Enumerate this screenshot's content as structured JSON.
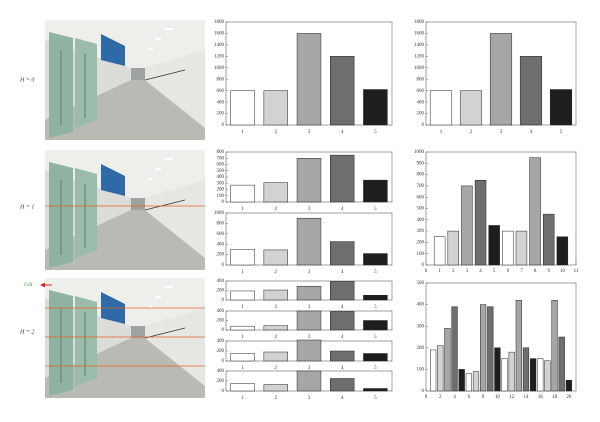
{
  "row_labels": [
    "H = 0",
    "H = 1",
    "H = 2"
  ],
  "cell_label": "Cell",
  "chart_data": [
    {
      "type": "bar",
      "categories": [
        "1",
        "2",
        "3",
        "4",
        "5"
      ],
      "values": [
        600,
        600,
        1600,
        1200,
        620
      ],
      "colors": [
        "#ffffff",
        "#d2d2d2",
        "#a6a6a6",
        "#6e6e6e",
        "#1e1e1e"
      ],
      "ylim": [
        0,
        1800
      ],
      "yticks": [
        0,
        200,
        400,
        600,
        800,
        1000,
        1200,
        1400,
        1600,
        1800
      ]
    },
    {
      "type": "bar",
      "categories": [
        "1",
        "2",
        "3",
        "4",
        "5"
      ],
      "values": [
        600,
        600,
        1600,
        1200,
        620
      ],
      "colors": [
        "#ffffff",
        "#d2d2d2",
        "#a6a6a6",
        "#6e6e6e",
        "#1e1e1e"
      ],
      "ylim": [
        0,
        1800
      ],
      "yticks": [
        0,
        200,
        400,
        600,
        800,
        1000,
        1200,
        1400,
        1600,
        1800
      ]
    },
    {
      "type": "bar",
      "categories": [
        "1",
        "2",
        "3",
        "4",
        "5"
      ],
      "values": [
        270,
        310,
        700,
        750,
        350
      ],
      "colors": [
        "#ffffff",
        "#d2d2d2",
        "#a6a6a6",
        "#6e6e6e",
        "#1e1e1e"
      ],
      "ylim": [
        0,
        800
      ],
      "yticks": [
        0,
        100,
        200,
        300,
        400,
        500,
        600,
        700,
        800
      ]
    },
    {
      "type": "bar",
      "categories": [
        "1",
        "2",
        "3",
        "4",
        "5"
      ],
      "values": [
        300,
        290,
        900,
        450,
        220
      ],
      "colors": [
        "#ffffff",
        "#d2d2d2",
        "#a6a6a6",
        "#6e6e6e",
        "#1e1e1e"
      ],
      "ylim": [
        0,
        1000
      ],
      "yticks": [
        0,
        200,
        400,
        600,
        800,
        1000
      ]
    },
    {
      "type": "bar",
      "x": [
        1,
        2,
        3,
        4,
        5,
        6,
        7,
        8,
        9,
        10
      ],
      "values": [
        250,
        300,
        700,
        750,
        350,
        300,
        300,
        950,
        450,
        250
      ],
      "colors": [
        "#ffffff",
        "#d2d2d2",
        "#a6a6a6",
        "#6e6e6e",
        "#1e1e1e",
        "#ffffff",
        "#d2d2d2",
        "#a6a6a6",
        "#6e6e6e",
        "#1e1e1e"
      ],
      "xlim": [
        0,
        11
      ],
      "xticks": [
        0,
        1,
        2,
        3,
        4,
        5,
        6,
        7,
        8,
        9,
        10,
        11
      ],
      "ylim": [
        0,
        1000
      ],
      "yticks": [
        0,
        100,
        200,
        300,
        400,
        500,
        600,
        700,
        800,
        900,
        1000
      ]
    },
    {
      "type": "bar",
      "categories": [
        "1",
        "2",
        "3",
        "4",
        "5"
      ],
      "values": [
        190,
        210,
        290,
        390,
        100
      ],
      "colors": [
        "#ffffff",
        "#d2d2d2",
        "#a6a6a6",
        "#6e6e6e",
        "#1e1e1e"
      ],
      "ylim": [
        0,
        400
      ],
      "yticks": [
        0,
        200,
        400
      ]
    },
    {
      "type": "bar",
      "categories": [
        "1",
        "2",
        "3",
        "4",
        "5"
      ],
      "values": [
        80,
        90,
        400,
        390,
        200
      ],
      "colors": [
        "#ffffff",
        "#d2d2d2",
        "#a6a6a6",
        "#6e6e6e",
        "#1e1e1e"
      ],
      "ylim": [
        0,
        400
      ],
      "yticks": [
        0,
        200,
        400
      ]
    },
    {
      "type": "bar",
      "categories": [
        "1",
        "2",
        "3",
        "4",
        "5"
      ],
      "values": [
        150,
        180,
        420,
        200,
        150
      ],
      "colors": [
        "#ffffff",
        "#d2d2d2",
        "#a6a6a6",
        "#6e6e6e",
        "#1e1e1e"
      ],
      "ylim": [
        0,
        400
      ],
      "yticks": [
        0,
        200,
        400
      ]
    },
    {
      "type": "bar",
      "categories": [
        "1",
        "2",
        "3",
        "4",
        "5"
      ],
      "values": [
        150,
        130,
        400,
        250,
        50
      ],
      "colors": [
        "#ffffff",
        "#d2d2d2",
        "#a6a6a6",
        "#6e6e6e",
        "#1e1e1e"
      ],
      "ylim": [
        0,
        400
      ],
      "yticks": [
        0,
        200,
        400
      ]
    },
    {
      "type": "bar",
      "x": [
        1,
        2,
        3,
        4,
        5,
        6,
        7,
        8,
        9,
        10,
        11,
        12,
        13,
        14,
        15,
        16,
        17,
        18,
        19,
        20
      ],
      "values": [
        190,
        210,
        290,
        390,
        100,
        80,
        90,
        400,
        390,
        200,
        150,
        180,
        420,
        200,
        150,
        150,
        140,
        420,
        250,
        50
      ],
      "colors": [
        "#ffffff",
        "#d2d2d2",
        "#a6a6a6",
        "#6e6e6e",
        "#1e1e1e",
        "#ffffff",
        "#d2d2d2",
        "#a6a6a6",
        "#6e6e6e",
        "#1e1e1e",
        "#ffffff",
        "#d2d2d2",
        "#a6a6a6",
        "#6e6e6e",
        "#1e1e1e",
        "#ffffff",
        "#d2d2d2",
        "#a6a6a6",
        "#6e6e6e",
        "#1e1e1e"
      ],
      "xlim": [
        0,
        21
      ],
      "xticks": [
        0,
        2,
        4,
        6,
        8,
        10,
        12,
        14,
        16,
        18,
        20
      ],
      "ylim": [
        0,
        500
      ],
      "yticks": [
        0,
        100,
        200,
        300,
        400,
        500
      ]
    }
  ]
}
